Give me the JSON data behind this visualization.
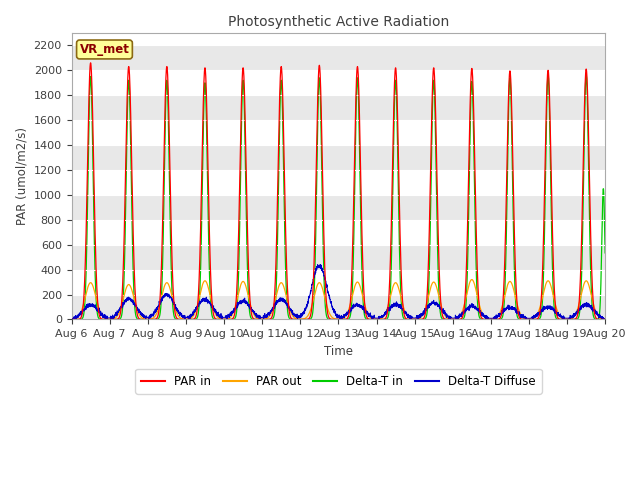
{
  "title": "Photosynthetic Active Radiation",
  "ylabel": "PAR (umol/m2/s)",
  "xlabel": "Time",
  "xlim_days": [
    6,
    20
  ],
  "ylim": [
    0,
    2300
  ],
  "yticks": [
    0,
    200,
    400,
    600,
    800,
    1000,
    1200,
    1400,
    1600,
    1800,
    2000,
    2200
  ],
  "figure_bg": "#ffffff",
  "plot_bg": "#ffffff",
  "band_colors": [
    "#e8e8e8",
    "#ffffff"
  ],
  "site_label": "VR_met",
  "site_label_bg": "#ffff99",
  "site_label_border": "#8b6914",
  "colors": {
    "PAR_in": "#ff0000",
    "PAR_out": "#ffa500",
    "Delta_T_in": "#00cc00",
    "Delta_T_Diffuse": "#0000cc"
  },
  "legend_labels": [
    "PAR in",
    "PAR out",
    "Delta-T in",
    "Delta-T Diffuse"
  ],
  "x_tick_labels": [
    "Aug 6",
    "Aug 7",
    "Aug 8",
    "Aug 9",
    "Aug 10",
    "Aug 11",
    "Aug 12",
    "Aug 13",
    "Aug 14",
    "Aug 15",
    "Aug 16",
    "Aug 17",
    "Aug 18",
    "Aug 19",
    "Aug 20"
  ],
  "num_days": 14,
  "start_day": 6,
  "points_per_day": 288
}
